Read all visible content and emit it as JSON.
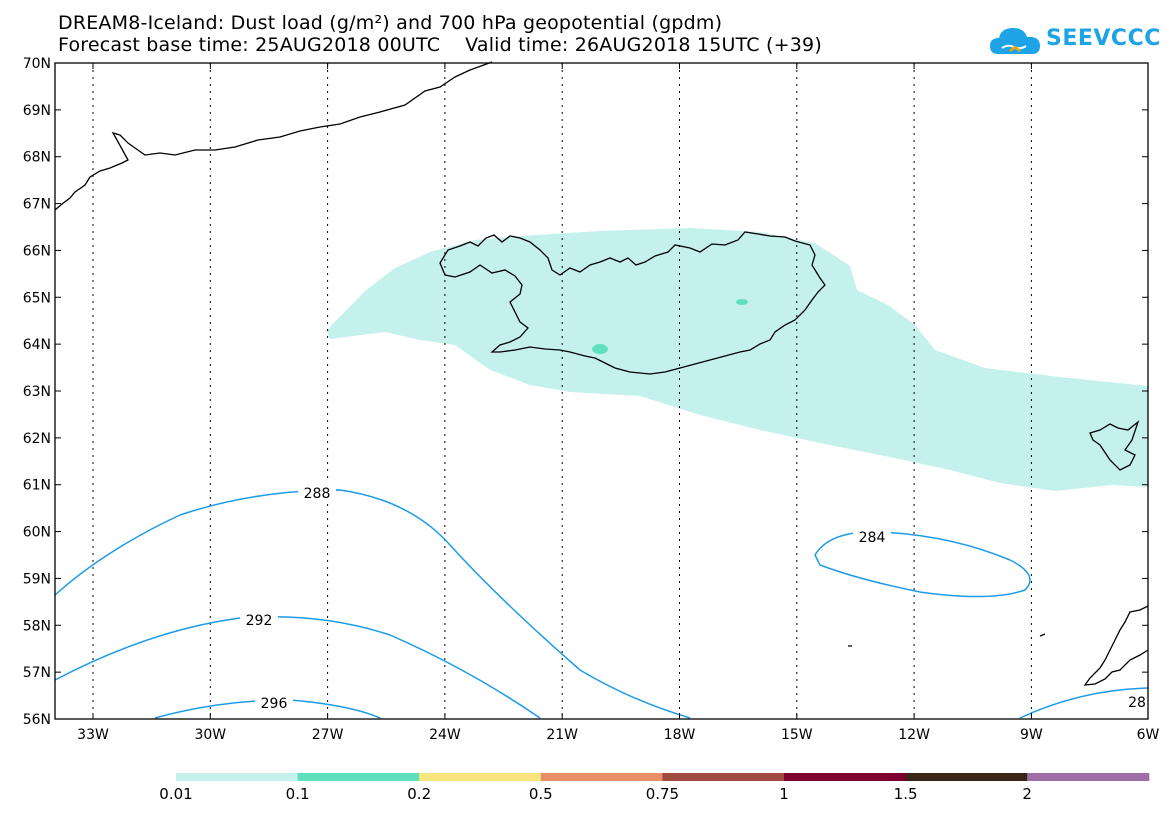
{
  "title_line_1": "DREAM8-Iceland: Dust load (g/m²) and 700 hPa geopotential (gpdm)",
  "title_line_2": "Forecast base time: 25AUG2018 00UTC    Valid time: 26AUG2018 15UTC (+39)",
  "logo": {
    "text": "SEEVCCC",
    "color": "#1ea4e6"
  },
  "map": {
    "lat_labels": [
      "70N",
      "69N",
      "68N",
      "67N",
      "66N",
      "65N",
      "64N",
      "63N",
      "62N",
      "61N",
      "60N",
      "59N",
      "58N",
      "57N",
      "56N"
    ],
    "lon_labels": [
      "33W",
      "30W",
      "27W",
      "24W",
      "21W",
      "18W",
      "15W",
      "12W",
      "9W",
      "6W"
    ],
    "contour_labels": [
      "288",
      "292",
      "296",
      "284",
      "28"
    ],
    "contour_color": "#1e9be6",
    "dust_color_light": "#c4f1ec",
    "dust_color_mid": "#5fe0bd"
  },
  "colorbar": {
    "colors": [
      "#c4f1ec",
      "#5fe0bd",
      "#f8e57e",
      "#e88f66",
      "#a14a3f",
      "#7d0031",
      "#3a2616",
      "#9d6fa6"
    ],
    "labels": [
      "0.01",
      "0.1",
      "0.2",
      "0.5",
      "0.75",
      "1",
      "1.5",
      "2"
    ]
  }
}
